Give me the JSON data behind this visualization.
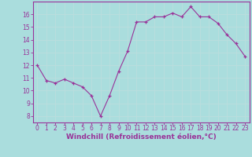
{
  "x": [
    0,
    1,
    2,
    3,
    4,
    5,
    6,
    7,
    8,
    9,
    10,
    11,
    12,
    13,
    14,
    15,
    16,
    17,
    18,
    19,
    20,
    21,
    22,
    23
  ],
  "y": [
    12.0,
    10.8,
    10.6,
    10.9,
    10.6,
    10.3,
    9.6,
    8.0,
    9.6,
    11.5,
    13.1,
    15.4,
    15.4,
    15.8,
    15.8,
    16.1,
    15.8,
    16.6,
    15.8,
    15.8,
    15.3,
    14.4,
    13.7,
    12.7
  ],
  "color": "#993399",
  "bg_color": "#aadddd",
  "grid_color": "#cceeee",
  "xlabel": "Windchill (Refroidissement éolien,°C)",
  "tick_fontsize": 5.5,
  "xlabel_fontsize": 6.5,
  "ylim": [
    7.5,
    17.0
  ],
  "xlim": [
    -0.5,
    23.5
  ],
  "yticks": [
    8,
    9,
    10,
    11,
    12,
    13,
    14,
    15,
    16
  ],
  "xticks": [
    0,
    1,
    2,
    3,
    4,
    5,
    6,
    7,
    8,
    9,
    10,
    11,
    12,
    13,
    14,
    15,
    16,
    17,
    18,
    19,
    20,
    21,
    22,
    23
  ]
}
